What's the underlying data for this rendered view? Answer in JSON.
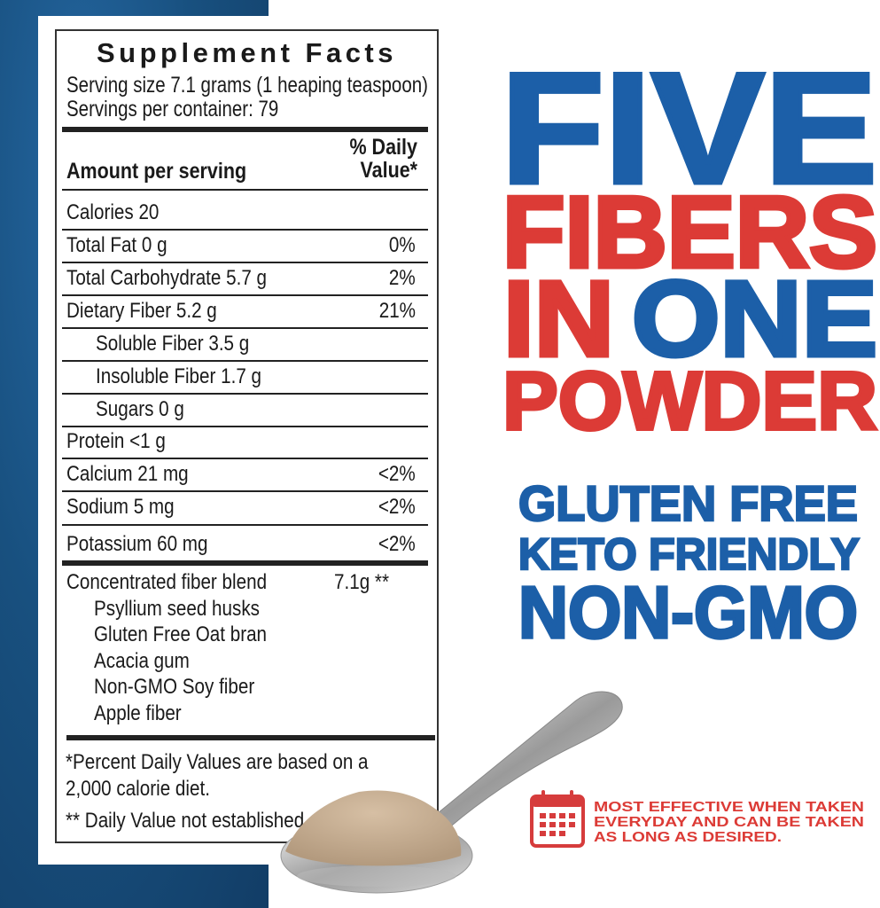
{
  "label": {
    "title": "Supplement Facts",
    "serving_size": "Serving size 7.1 grams (1 heaping teaspoon)",
    "servings_per_container": "Servings  per container: 79",
    "amount_header": "Amount per serving",
    "dv_header_line1": "% Daily",
    "dv_header_line2": "Value*",
    "rows": [
      {
        "name": "Calories  20",
        "dv": ""
      },
      {
        "name": "Total Fat  0 g",
        "dv": "0%"
      },
      {
        "name": "Total Carbohydrate 5.7 g",
        "dv": "2%"
      },
      {
        "name": "Dietary Fiber 5.2 g",
        "dv": "21%"
      },
      {
        "name": "Soluble Fiber 3.5 g",
        "dv": ""
      },
      {
        "name": "Insoluble Fiber 1.7 g",
        "dv": ""
      },
      {
        "name": "Sugars 0 g",
        "dv": ""
      },
      {
        "name": "Protein <1 g",
        "dv": ""
      },
      {
        "name": "Calcium 21 mg",
        "dv": "<2%"
      },
      {
        "name": "Sodium 5 mg",
        "dv": "<2%"
      },
      {
        "name": "Potassium 60 mg",
        "dv": "<2%"
      }
    ],
    "blend": {
      "name": "Concentrated fiber blend",
      "amount": "7.1g  **"
    },
    "blend_items": [
      "Psyllium seed husks",
      "Gluten Free Oat bran",
      "Acacia gum",
      "Non-GMO Soy fiber",
      "Apple fiber"
    ],
    "footnote1_line1": "*Percent Daily Values are based on a",
    "footnote1_line2": "2,000 calorie diet.",
    "footnote2": "** Daily Value not established"
  },
  "headline": {
    "line1": "FIVE",
    "line2": "FIBERS",
    "line3a": "IN",
    "line3b": "ONE",
    "line4": "POWDER"
  },
  "claims": [
    "GLUTEN FREE",
    "KETO FRIENDLY",
    "NON-GMO"
  ],
  "note": {
    "icon": "calendar-icon",
    "lines": [
      "MOST EFFECTIVE WHEN TAKEN",
      "EVERYDAY AND CAN BE TAKEN",
      "AS LONG AS DESIRED."
    ]
  },
  "colors": {
    "blue": "#1c5fa8",
    "red": "#dc3b36",
    "background_blue": "#18507f"
  }
}
